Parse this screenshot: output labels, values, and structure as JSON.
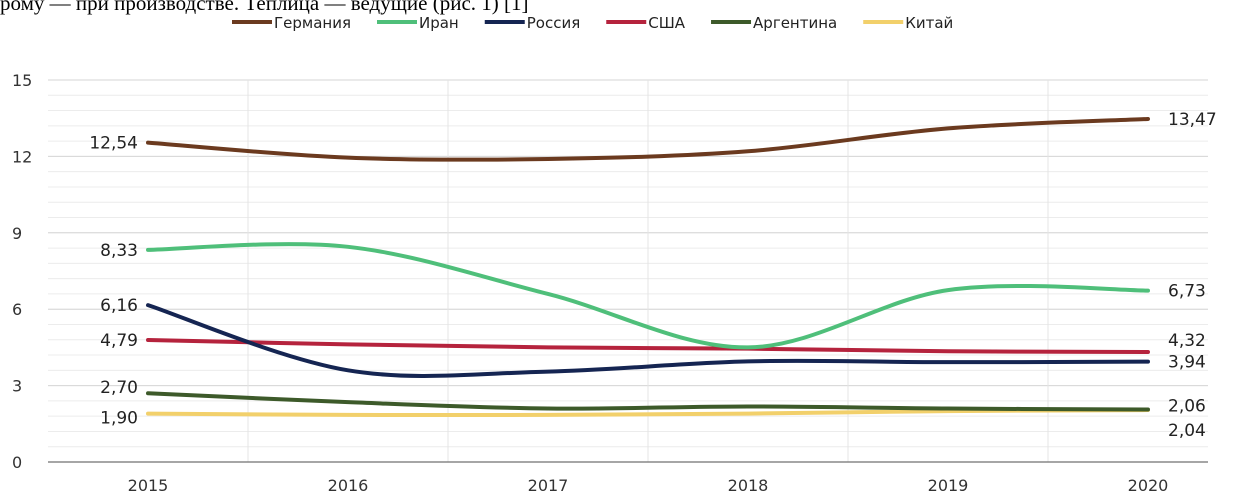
{
  "header_text": "рому — при производстве. Теплица — ведущие (рис. 1) [1]",
  "chart_data": {
    "type": "line",
    "title": "",
    "xlabel": "",
    "ylabel": "",
    "categories": [
      "2015",
      "2016",
      "2017",
      "2018",
      "2019",
      "2020"
    ],
    "ylim": [
      0,
      15
    ],
    "yticks": [
      0,
      3,
      6,
      9,
      12,
      15
    ],
    "grid": true,
    "legend_position": "top",
    "series": [
      {
        "name": "Германия",
        "color": "#6b3a1f",
        "values": [
          12.54,
          11.95,
          11.9,
          12.2,
          13.1,
          13.47
        ],
        "start_label": "12,54",
        "end_label": "13,47"
      },
      {
        "name": "Иран",
        "color": "#4fbf7a",
        "values": [
          8.33,
          8.45,
          6.6,
          4.5,
          6.75,
          6.73
        ],
        "start_label": "8,33",
        "end_label": "6,73"
      },
      {
        "name": "Россия",
        "color": "#152552",
        "values": [
          6.16,
          3.6,
          3.55,
          3.95,
          3.92,
          3.94
        ],
        "start_label": "6,16",
        "end_label": "3,94"
      },
      {
        "name": "США",
        "color": "#b5233d",
        "values": [
          4.79,
          4.62,
          4.5,
          4.45,
          4.35,
          4.32
        ],
        "start_label": "4,79",
        "end_label": "4,32"
      },
      {
        "name": "Аргентина",
        "color": "#3d5a2a",
        "values": [
          2.7,
          2.35,
          2.1,
          2.18,
          2.1,
          2.06
        ],
        "start_label": "2,70",
        "end_label": "2,06"
      },
      {
        "name": "Китай",
        "color": "#f2d06b",
        "values": [
          1.9,
          1.85,
          1.85,
          1.9,
          2.0,
          2.04
        ],
        "start_label": "1,90",
        "end_label": "2,04"
      }
    ]
  }
}
